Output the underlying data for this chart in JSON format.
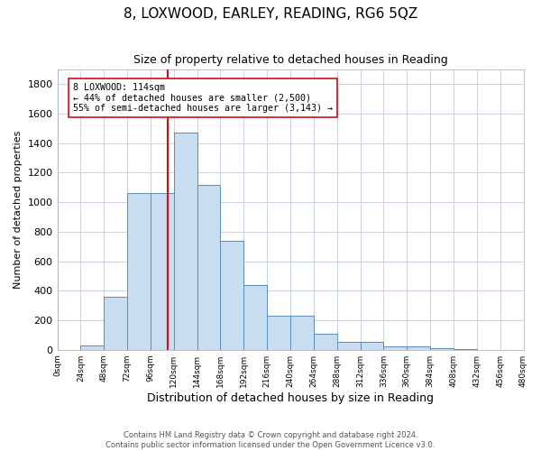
{
  "title": "8, LOXWOOD, EARLEY, READING, RG6 5QZ",
  "subtitle": "Size of property relative to detached houses in Reading",
  "xlabel": "Distribution of detached houses by size in Reading",
  "ylabel": "Number of detached properties",
  "footer_line1": "Contains HM Land Registry data © Crown copyright and database right 2024.",
  "footer_line2": "Contains public sector information licensed under the Open Government Licence v3.0.",
  "bin_left_edges": [
    0,
    24,
    48,
    72,
    96,
    120,
    144,
    168,
    192,
    216,
    240,
    264,
    288,
    312,
    336,
    360,
    384,
    408,
    432,
    456
  ],
  "bin_counts": [
    0,
    30,
    360,
    1060,
    1060,
    1470,
    1120,
    740,
    440,
    230,
    230,
    110,
    55,
    55,
    20,
    20,
    10,
    5,
    0,
    0
  ],
  "property_size": 114,
  "annotation_line1": "8 LOXWOOD: 114sqm",
  "annotation_line2": "← 44% of detached houses are smaller (2,500)",
  "annotation_line3": "55% of semi-detached houses are larger (3,143) →",
  "bar_color": "#c8ddf0",
  "bar_edge_color": "#5b8db8",
  "vline_color": "#cc1111",
  "annotation_box_bg": "#ffffff",
  "annotation_box_edge": "#cc1111",
  "grid_color": "#c8d4e4",
  "background_color": "#ffffff",
  "ylim": [
    0,
    1900
  ],
  "yticks": [
    0,
    200,
    400,
    600,
    800,
    1000,
    1200,
    1400,
    1600,
    1800
  ],
  "xtick_labels": [
    "0sqm",
    "24sqm",
    "48sqm",
    "72sqm",
    "96sqm",
    "120sqm",
    "144sqm",
    "168sqm",
    "192sqm",
    "216sqm",
    "240sqm",
    "264sqm",
    "288sqm",
    "312sqm",
    "336sqm",
    "360sqm",
    "384sqm",
    "408sqm",
    "432sqm",
    "456sqm",
    "480sqm"
  ]
}
